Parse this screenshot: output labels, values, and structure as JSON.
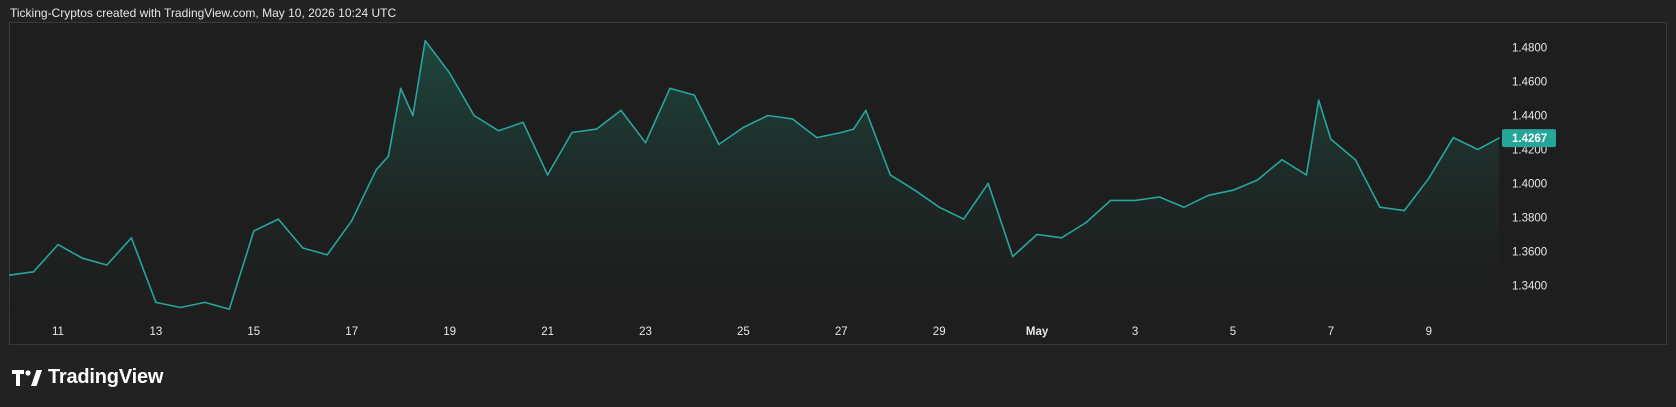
{
  "caption": "Ticking-Cryptos created with TradingView.com, May 10, 2026 10:24 UTC",
  "brand": {
    "name": "TradingView",
    "logo_icon": "tradingview-logo-icon"
  },
  "colors": {
    "line": "#26a69a",
    "fill_top": "#1e4a40",
    "fill_bottom": "#1e1e1e",
    "background": "#222222",
    "panel": "#1e1e1e",
    "text": "#e6e6e6",
    "price_label_bg": "#26a69a"
  },
  "chart_data": {
    "type": "area",
    "title": "",
    "xlabel": "",
    "ylabel": "",
    "grid": false,
    "x_ticks": [
      "11",
      "13",
      "15",
      "17",
      "19",
      "21",
      "23",
      "25",
      "27",
      "29",
      "May",
      "3",
      "5",
      "7",
      "9"
    ],
    "y_ticks": [
      "1.3400",
      "1.3600",
      "1.3800",
      "1.4000",
      "1.4200",
      "1.4400",
      "1.4600",
      "1.4800"
    ],
    "ylim": [
      1.322,
      1.495
    ],
    "xlim": [
      "2026-04-10",
      "2026-05-10 10:24"
    ],
    "last_price": "1.4267",
    "series": [
      {
        "x": [
          "2026-04-10 00:00",
          "2026-04-10 12:00",
          "2026-04-11 00:00",
          "2026-04-11 12:00",
          "2026-04-12 00:00",
          "2026-04-12 12:00",
          "2026-04-13 00:00",
          "2026-04-13 12:00",
          "2026-04-14 00:00",
          "2026-04-14 12:00",
          "2026-04-15 00:00",
          "2026-04-15 12:00",
          "2026-04-16 00:00",
          "2026-04-16 12:00",
          "2026-04-17 00:00",
          "2026-04-17 12:00",
          "2026-04-17 18:00",
          "2026-04-18 00:00",
          "2026-04-18 06:00",
          "2026-04-18 12:00",
          "2026-04-19 00:00",
          "2026-04-19 12:00",
          "2026-04-20 00:00",
          "2026-04-20 12:00",
          "2026-04-21 00:00",
          "2026-04-21 12:00",
          "2026-04-22 00:00",
          "2026-04-22 12:00",
          "2026-04-23 00:00",
          "2026-04-23 12:00",
          "2026-04-24 00:00",
          "2026-04-24 12:00",
          "2026-04-25 00:00",
          "2026-04-25 12:00",
          "2026-04-26 00:00",
          "2026-04-26 12:00",
          "2026-04-27 00:00",
          "2026-04-27 06:00",
          "2026-04-27 12:00",
          "2026-04-28 00:00",
          "2026-04-28 12:00",
          "2026-04-29 00:00",
          "2026-04-29 12:00",
          "2026-04-30 00:00",
          "2026-04-30 12:00",
          "2026-05-01 00:00",
          "2026-05-01 12:00",
          "2026-05-02 00:00",
          "2026-05-02 12:00",
          "2026-05-03 00:00",
          "2026-05-03 12:00",
          "2026-05-04 00:00",
          "2026-05-04 12:00",
          "2026-05-05 00:00",
          "2026-05-05 12:00",
          "2026-05-06 00:00",
          "2026-05-06 12:00",
          "2026-05-06 18:00",
          "2026-05-07 00:00",
          "2026-05-07 12:00",
          "2026-05-08 00:00",
          "2026-05-08 12:00",
          "2026-05-09 00:00",
          "2026-05-09 12:00",
          "2026-05-10 00:00",
          "2026-05-10 10:24"
        ],
        "y": [
          1.346,
          1.348,
          1.364,
          1.356,
          1.352,
          1.368,
          1.33,
          1.327,
          1.33,
          1.326,
          1.372,
          1.379,
          1.362,
          1.358,
          1.378,
          1.408,
          1.416,
          1.456,
          1.44,
          1.484,
          1.465,
          1.44,
          1.431,
          1.436,
          1.405,
          1.43,
          1.432,
          1.443,
          1.424,
          1.456,
          1.452,
          1.423,
          1.433,
          1.44,
          1.438,
          1.427,
          1.43,
          1.432,
          1.443,
          1.405,
          1.396,
          1.386,
          1.379,
          1.4,
          1.357,
          1.37,
          1.368,
          1.377,
          1.39,
          1.39,
          1.392,
          1.386,
          1.393,
          1.396,
          1.402,
          1.414,
          1.405,
          1.449,
          1.426,
          1.414,
          1.386,
          1.384,
          1.403,
          1.427,
          1.42,
          1.4267
        ]
      }
    ]
  }
}
